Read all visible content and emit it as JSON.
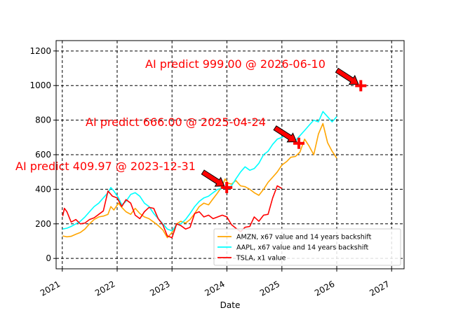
{
  "chart_data": {
    "type": "line",
    "title": "",
    "xlabel": "Date",
    "ylabel": "",
    "xlim": [
      "2020-11-21",
      "2027-03-25"
    ],
    "ylim": [
      -60,
      1260
    ],
    "x_ticks": [
      {
        "date": "2021-01-01",
        "label": "2021"
      },
      {
        "date": "2022-01-01",
        "label": "2022"
      },
      {
        "date": "2023-01-01",
        "label": "2023"
      },
      {
        "date": "2024-01-01",
        "label": "2024"
      },
      {
        "date": "2025-01-01",
        "label": "2025"
      },
      {
        "date": "2026-01-01",
        "label": "2026"
      },
      {
        "date": "2027-01-01",
        "label": "2027"
      }
    ],
    "y_ticks": [
      0,
      200,
      400,
      600,
      800,
      1000,
      1200
    ],
    "grid": true,
    "legend": "lower-right",
    "series": [
      {
        "name": "AMZN, x67 value and 14 years backshift",
        "color": "#ffa500",
        "points": [
          [
            "2021-01-04",
            130
          ],
          [
            "2021-02-01",
            125
          ],
          [
            "2021-03-01",
            128
          ],
          [
            "2021-04-01",
            140
          ],
          [
            "2021-05-01",
            150
          ],
          [
            "2021-06-01",
            170
          ],
          [
            "2021-07-01",
            200
          ],
          [
            "2021-08-01",
            225
          ],
          [
            "2021-09-01",
            240
          ],
          [
            "2021-10-01",
            245
          ],
          [
            "2021-11-01",
            255
          ],
          [
            "2021-11-20",
            300
          ],
          [
            "2021-12-10",
            280
          ],
          [
            "2022-01-10",
            320
          ],
          [
            "2022-02-01",
            295
          ],
          [
            "2022-03-01",
            270
          ],
          [
            "2022-04-01",
            255
          ],
          [
            "2022-05-01",
            290
          ],
          [
            "2022-06-01",
            260
          ],
          [
            "2022-07-01",
            240
          ],
          [
            "2022-08-01",
            230
          ],
          [
            "2022-09-01",
            210
          ],
          [
            "2022-10-01",
            190
          ],
          [
            "2022-11-01",
            165
          ],
          [
            "2022-12-01",
            120
          ],
          [
            "2023-01-01",
            150
          ],
          [
            "2023-02-01",
            200
          ],
          [
            "2023-03-01",
            215
          ],
          [
            "2023-04-01",
            205
          ],
          [
            "2023-05-01",
            225
          ],
          [
            "2023-06-01",
            260
          ],
          [
            "2023-07-01",
            300
          ],
          [
            "2023-08-01",
            320
          ],
          [
            "2023-09-01",
            310
          ],
          [
            "2023-10-01",
            345
          ],
          [
            "2023-11-01",
            380
          ],
          [
            "2023-12-01",
            420
          ],
          [
            "2023-12-20",
            460
          ],
          [
            "2024-01-10",
            435
          ],
          [
            "2024-02-01",
            430
          ],
          [
            "2024-03-01",
            450
          ],
          [
            "2024-04-01",
            420
          ],
          [
            "2024-05-01",
            415
          ],
          [
            "2024-06-01",
            400
          ],
          [
            "2024-07-01",
            380
          ],
          [
            "2024-08-01",
            365
          ],
          [
            "2024-09-01",
            400
          ],
          [
            "2024-10-01",
            440
          ],
          [
            "2024-11-01",
            470
          ],
          [
            "2024-12-01",
            500
          ],
          [
            "2025-01-01",
            540
          ],
          [
            "2025-02-01",
            560
          ],
          [
            "2025-03-01",
            585
          ],
          [
            "2025-04-01",
            590
          ],
          [
            "2025-05-01",
            615
          ],
          [
            "2025-06-01",
            690
          ],
          [
            "2025-07-01",
            650
          ],
          [
            "2025-08-01",
            600
          ],
          [
            "2025-09-01",
            720
          ],
          [
            "2025-10-01",
            780
          ],
          [
            "2025-11-01",
            670
          ],
          [
            "2025-12-01",
            620
          ],
          [
            "2026-01-01",
            580
          ]
        ]
      },
      {
        "name": "AAPL, x67 value and 14 years backshift",
        "color": "#00ffff",
        "points": [
          [
            "2021-01-04",
            170
          ],
          [
            "2021-02-01",
            175
          ],
          [
            "2021-03-01",
            185
          ],
          [
            "2021-04-01",
            200
          ],
          [
            "2021-05-01",
            215
          ],
          [
            "2021-06-01",
            240
          ],
          [
            "2021-07-01",
            270
          ],
          [
            "2021-08-01",
            300
          ],
          [
            "2021-09-01",
            320
          ],
          [
            "2021-10-01",
            350
          ],
          [
            "2021-11-01",
            380
          ],
          [
            "2021-11-20",
            410
          ],
          [
            "2021-12-10",
            390
          ],
          [
            "2022-01-10",
            350
          ],
          [
            "2022-02-01",
            310
          ],
          [
            "2022-03-01",
            330
          ],
          [
            "2022-04-01",
            370
          ],
          [
            "2022-05-01",
            380
          ],
          [
            "2022-06-01",
            360
          ],
          [
            "2022-07-01",
            320
          ],
          [
            "2022-08-01",
            300
          ],
          [
            "2022-09-01",
            260
          ],
          [
            "2022-10-01",
            230
          ],
          [
            "2022-11-01",
            200
          ],
          [
            "2022-12-01",
            170
          ],
          [
            "2023-01-01",
            160
          ],
          [
            "2023-02-01",
            195
          ],
          [
            "2023-03-01",
            200
          ],
          [
            "2023-04-01",
            225
          ],
          [
            "2023-05-01",
            260
          ],
          [
            "2023-06-01",
            300
          ],
          [
            "2023-07-01",
            330
          ],
          [
            "2023-08-01",
            350
          ],
          [
            "2023-09-01",
            360
          ],
          [
            "2023-10-01",
            380
          ],
          [
            "2023-11-01",
            400
          ],
          [
            "2023-12-01",
            405
          ],
          [
            "2024-01-01",
            410
          ],
          [
            "2024-02-01",
            420
          ],
          [
            "2024-03-01",
            460
          ],
          [
            "2024-04-01",
            500
          ],
          [
            "2024-05-01",
            530
          ],
          [
            "2024-06-01",
            510
          ],
          [
            "2024-07-01",
            520
          ],
          [
            "2024-08-01",
            550
          ],
          [
            "2024-09-01",
            600
          ],
          [
            "2024-10-01",
            620
          ],
          [
            "2024-11-01",
            660
          ],
          [
            "2024-12-01",
            690
          ],
          [
            "2025-01-01",
            700
          ],
          [
            "2025-02-01",
            720
          ],
          [
            "2025-03-01",
            710
          ],
          [
            "2025-04-01",
            680
          ],
          [
            "2025-05-01",
            710
          ],
          [
            "2025-06-01",
            740
          ],
          [
            "2025-07-01",
            770
          ],
          [
            "2025-08-01",
            800
          ],
          [
            "2025-09-01",
            790
          ],
          [
            "2025-10-01",
            850
          ],
          [
            "2025-11-01",
            820
          ],
          [
            "2025-12-01",
            790
          ],
          [
            "2026-01-01",
            820
          ]
        ]
      },
      {
        "name": "TSLA, x1 value",
        "color": "#ff0000",
        "points": [
          [
            "2021-01-04",
            245
          ],
          [
            "2021-01-15",
            290
          ],
          [
            "2021-02-01",
            270
          ],
          [
            "2021-03-01",
            210
          ],
          [
            "2021-04-01",
            225
          ],
          [
            "2021-05-01",
            200
          ],
          [
            "2021-06-01",
            205
          ],
          [
            "2021-07-01",
            225
          ],
          [
            "2021-08-01",
            235
          ],
          [
            "2021-09-01",
            255
          ],
          [
            "2021-10-01",
            275
          ],
          [
            "2021-11-01",
            390
          ],
          [
            "2021-12-01",
            360
          ],
          [
            "2022-01-01",
            350
          ],
          [
            "2022-02-01",
            300
          ],
          [
            "2022-03-01",
            340
          ],
          [
            "2022-04-01",
            320
          ],
          [
            "2022-05-01",
            250
          ],
          [
            "2022-06-01",
            230
          ],
          [
            "2022-07-01",
            270
          ],
          [
            "2022-08-01",
            295
          ],
          [
            "2022-09-01",
            290
          ],
          [
            "2022-10-01",
            230
          ],
          [
            "2022-11-01",
            195
          ],
          [
            "2022-12-01",
            130
          ],
          [
            "2023-01-01",
            120
          ],
          [
            "2023-02-01",
            200
          ],
          [
            "2023-03-01",
            190
          ],
          [
            "2023-04-01",
            170
          ],
          [
            "2023-05-01",
            180
          ],
          [
            "2023-06-01",
            260
          ],
          [
            "2023-07-01",
            270
          ],
          [
            "2023-08-01",
            240
          ],
          [
            "2023-09-01",
            250
          ],
          [
            "2023-10-01",
            230
          ],
          [
            "2023-11-01",
            240
          ],
          [
            "2023-12-01",
            250
          ],
          [
            "2024-01-01",
            240
          ],
          [
            "2024-02-01",
            195
          ],
          [
            "2024-03-01",
            175
          ],
          [
            "2024-04-01",
            155
          ],
          [
            "2024-05-01",
            180
          ],
          [
            "2024-06-01",
            185
          ],
          [
            "2024-07-01",
            240
          ],
          [
            "2024-08-01",
            215
          ],
          [
            "2024-09-01",
            250
          ],
          [
            "2024-10-01",
            255
          ],
          [
            "2024-11-01",
            350
          ],
          [
            "2024-12-01",
            420
          ],
          [
            "2025-01-01",
            405
          ]
        ]
      }
    ],
    "annotations": [
      {
        "text": "AI predict 409.97 @ 2023-12-31",
        "date": "2023-12-31",
        "value": 409.97,
        "color": "#ff0000",
        "marker": "plus",
        "arrow": true
      },
      {
        "text": "AI predict 666.00 @ 2025-04-24",
        "date": "2025-04-24",
        "value": 666.0,
        "color": "#ff0000",
        "marker": "plus",
        "arrow": true
      },
      {
        "text": "AI predict 999.00 @ 2026-06-10",
        "date": "2026-06-10",
        "value": 999.0,
        "color": "#ff0000",
        "marker": "plus",
        "arrow": true
      }
    ]
  }
}
